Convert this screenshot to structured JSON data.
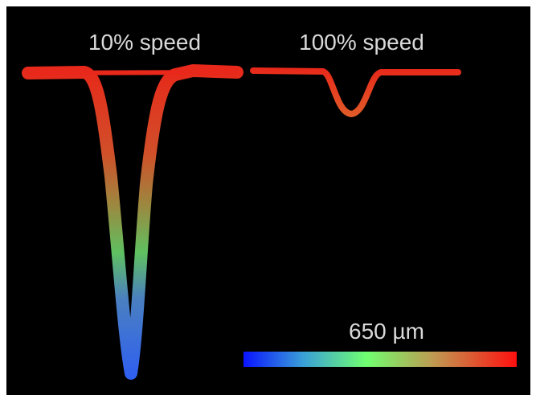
{
  "labels": {
    "left": "10% speed",
    "right": "100% speed"
  },
  "scale_bar": {
    "label": "650 µm"
  }
}
